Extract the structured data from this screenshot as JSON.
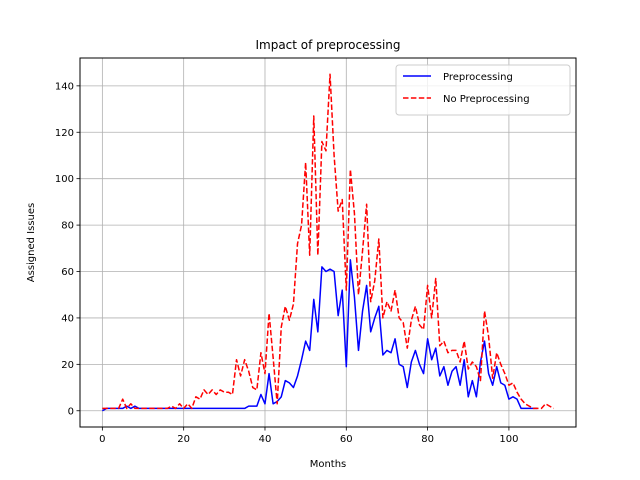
{
  "chart_data": {
    "type": "line",
    "title": "Impact of preprocessing",
    "xlabel": "Months",
    "ylabel": "Assigned Issues",
    "xlim": [
      -5.5,
      116.5
    ],
    "ylim": [
      -7,
      152
    ],
    "xticks": [
      0,
      20,
      40,
      60,
      80,
      100
    ],
    "yticks": [
      0,
      20,
      40,
      60,
      80,
      100,
      120,
      140
    ],
    "grid": true,
    "legend_position": "upper right",
    "series": [
      {
        "name": "Preprocessing",
        "color": "#0000ff",
        "linestyle": "solid",
        "x": [
          0,
          1,
          2,
          3,
          4,
          5,
          6,
          7,
          8,
          9,
          10,
          11,
          12,
          13,
          14,
          15,
          16,
          17,
          18,
          19,
          20,
          21,
          22,
          23,
          24,
          25,
          26,
          27,
          28,
          29,
          30,
          31,
          32,
          33,
          34,
          35,
          36,
          37,
          38,
          39,
          40,
          41,
          42,
          43,
          44,
          45,
          46,
          47,
          48,
          49,
          50,
          51,
          52,
          53,
          54,
          55,
          56,
          57,
          58,
          59,
          60,
          61,
          62,
          63,
          64,
          65,
          66,
          67,
          68,
          69,
          70,
          71,
          72,
          73,
          74,
          75,
          76,
          77,
          78,
          79,
          80,
          81,
          82,
          83,
          84,
          85,
          86,
          87,
          88,
          89,
          90,
          91,
          92,
          93,
          94,
          95,
          96,
          97,
          98,
          99,
          100,
          101,
          102,
          103,
          104,
          105,
          106,
          107
        ],
        "y": [
          0,
          1,
          1,
          1,
          1,
          1,
          2,
          1,
          2,
          1,
          1,
          1,
          1,
          1,
          1,
          1,
          1,
          1,
          1,
          1,
          1,
          1,
          1,
          1,
          1,
          1,
          1,
          1,
          1,
          1,
          1,
          1,
          1,
          1,
          1,
          1,
          2,
          2,
          2,
          7,
          3,
          16,
          3,
          4,
          6,
          13,
          12,
          10,
          15,
          22,
          30,
          26,
          48,
          34,
          62,
          60,
          61,
          60,
          41,
          52,
          19,
          65,
          49,
          26,
          43,
          54,
          34,
          40,
          45,
          24,
          26,
          25,
          31,
          20,
          19,
          10,
          21,
          26,
          20,
          16,
          31,
          22,
          27,
          15,
          19,
          11,
          17,
          19,
          11,
          22,
          6,
          13,
          6,
          21,
          30,
          16,
          11,
          19,
          12,
          11,
          5,
          6,
          5,
          1,
          1,
          1,
          1,
          1
        ]
      },
      {
        "name": "No Preprocessing",
        "color": "#ff0000",
        "linestyle": "dashed",
        "x": [
          0,
          1,
          2,
          3,
          4,
          5,
          6,
          7,
          8,
          9,
          10,
          11,
          12,
          13,
          14,
          15,
          16,
          17,
          18,
          19,
          20,
          21,
          22,
          23,
          24,
          25,
          26,
          27,
          28,
          29,
          30,
          31,
          32,
          33,
          34,
          35,
          36,
          37,
          38,
          39,
          40,
          41,
          42,
          43,
          44,
          45,
          46,
          47,
          48,
          49,
          50,
          51,
          52,
          53,
          54,
          55,
          56,
          57,
          58,
          59,
          60,
          61,
          62,
          63,
          64,
          65,
          66,
          67,
          68,
          69,
          70,
          71,
          72,
          73,
          74,
          75,
          76,
          77,
          78,
          79,
          80,
          81,
          82,
          83,
          84,
          85,
          86,
          87,
          88,
          89,
          90,
          91,
          92,
          93,
          94,
          95,
          96,
          97,
          98,
          99,
          100,
          101,
          102,
          103,
          104,
          105,
          106,
          107,
          108,
          109,
          110,
          111
        ],
        "y": [
          1,
          1,
          1,
          1,
          1,
          5,
          1,
          3,
          1,
          1,
          1,
          1,
          1,
          1,
          1,
          1,
          1,
          2,
          1,
          3,
          1,
          3,
          1,
          6,
          5,
          9,
          7,
          9,
          7,
          9,
          8,
          8,
          7,
          22,
          15,
          22,
          17,
          10,
          9,
          25,
          16,
          42,
          23,
          3,
          36,
          45,
          39,
          46,
          72,
          80,
          107,
          67,
          127,
          67,
          116,
          112,
          145,
          110,
          86,
          91,
          52,
          104,
          85,
          50,
          69,
          89,
          47,
          56,
          74,
          40,
          47,
          43,
          52,
          40,
          38,
          27,
          39,
          45,
          37,
          35,
          54,
          40,
          57,
          28,
          30,
          25,
          26,
          26,
          21,
          30,
          18,
          21,
          19,
          13,
          43,
          32,
          14,
          25,
          20,
          16,
          11,
          12,
          8,
          5,
          3,
          2,
          1,
          1,
          1,
          3,
          2,
          1
        ]
      }
    ]
  }
}
